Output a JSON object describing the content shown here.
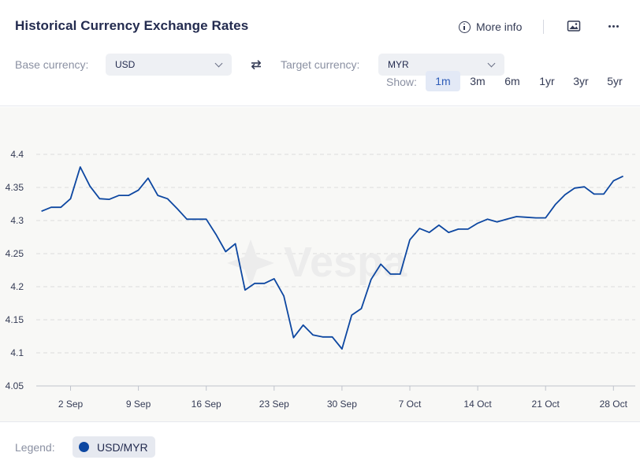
{
  "header": {
    "title": "Historical Currency Exchange Rates",
    "more_info_label": "More info",
    "icons": {
      "info": "info-icon",
      "image": "image-icon",
      "more": "more-horizontal-icon",
      "swap": "swap-arrows-icon"
    }
  },
  "controls": {
    "base_label": "Base currency:",
    "base_value": "USD",
    "target_label": "Target currency:",
    "target_value": "MYR",
    "show_label": "Show:",
    "ranges": [
      {
        "label": "1m",
        "active": true
      },
      {
        "label": "3m",
        "active": false
      },
      {
        "label": "6m",
        "active": false
      },
      {
        "label": "1yr",
        "active": false
      },
      {
        "label": "3yr",
        "active": false
      },
      {
        "label": "5yr",
        "active": false
      }
    ]
  },
  "legend": {
    "label": "Legend:",
    "series_name": "USD/MYR",
    "color": "#0d47a1"
  },
  "chart_data": {
    "type": "line",
    "watermark": "Vespa",
    "title": "",
    "xlabel": "",
    "ylabel": "",
    "ylim": [
      4.05,
      4.4
    ],
    "yticks": [
      "4.4",
      "4.35",
      "4.3",
      "4.25",
      "4.2",
      "4.15",
      "4.1",
      "4.05"
    ],
    "ytick_values": [
      4.4,
      4.35,
      4.3,
      4.25,
      4.2,
      4.15,
      4.1,
      4.05
    ],
    "xticks": [
      "2 Sep",
      "9 Sep",
      "16 Sep",
      "23 Sep",
      "30 Sep",
      "7 Oct",
      "14 Oct",
      "21 Oct",
      "28 Oct"
    ],
    "xtick_days": [
      2,
      9,
      16,
      23,
      30,
      37,
      44,
      51,
      58
    ],
    "grid": true,
    "line_color": "#0d47a1",
    "series": [
      {
        "name": "USD/MYR",
        "x": [
          -1,
          0,
          1,
          2,
          3,
          4,
          5,
          6,
          7,
          8,
          9,
          10,
          11,
          12,
          13,
          14,
          15,
          16,
          17,
          18,
          19,
          20,
          21,
          22,
          23,
          24,
          25,
          26,
          27,
          28,
          29,
          30,
          31,
          32,
          33,
          34,
          35,
          36,
          37,
          38,
          39,
          40,
          41,
          42,
          43,
          44,
          45,
          46,
          47,
          48,
          49,
          50,
          51,
          52,
          53,
          54,
          55,
          56,
          57,
          58,
          59
        ],
        "values": [
          4.314,
          4.32,
          4.32,
          4.333,
          4.381,
          4.352,
          4.333,
          4.332,
          4.338,
          4.338,
          4.346,
          4.364,
          4.338,
          4.333,
          4.318,
          4.302,
          4.302,
          4.302,
          4.279,
          4.253,
          4.265,
          4.195,
          4.205,
          4.205,
          4.212,
          4.186,
          4.123,
          4.142,
          4.127,
          4.124,
          4.124,
          4.106,
          4.157,
          4.167,
          4.211,
          4.234,
          4.219,
          4.219,
          4.271,
          4.288,
          4.282,
          4.293,
          4.282,
          4.287,
          4.287,
          4.296,
          4.302,
          4.298,
          4.302,
          4.306,
          4.305,
          4.304,
          4.304,
          4.324,
          4.339,
          4.349,
          4.351,
          4.34,
          4.34,
          4.36,
          4.367
        ]
      }
    ]
  }
}
